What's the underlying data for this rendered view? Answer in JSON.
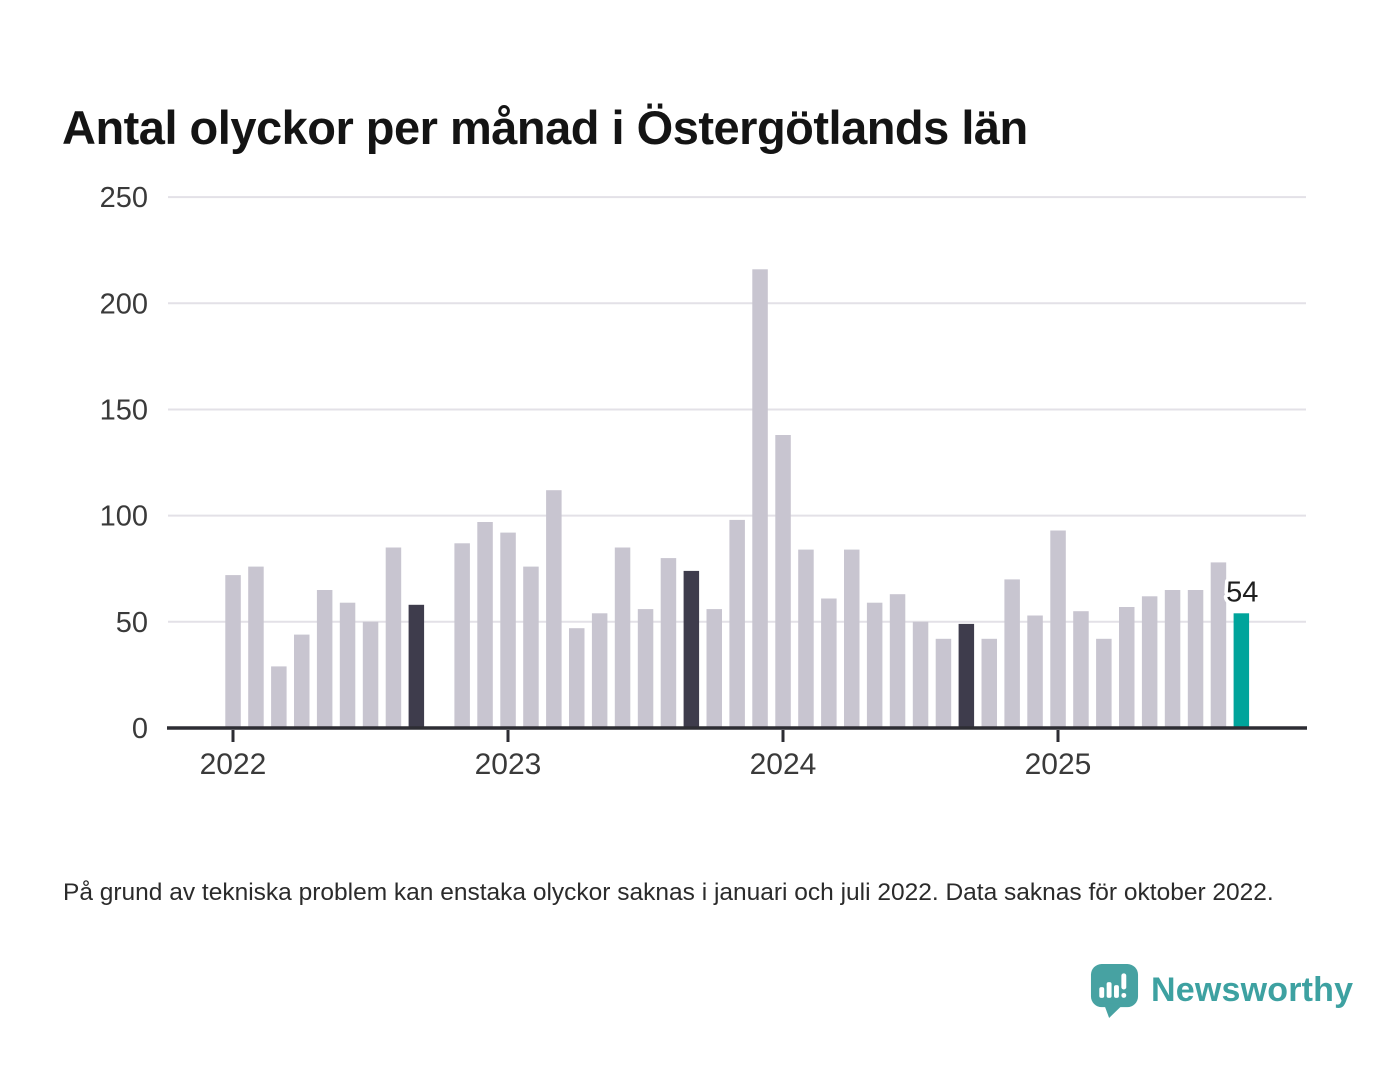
{
  "title": "Antal olyckor per månad i Östergötlands län",
  "footnote": "På grund av tekniska problem kan enstaka olyckor saknas i januari och juli 2022. Data saknas för oktober 2022.",
  "logo": {
    "text": "Newsworthy",
    "icon": "speech-bubble-bar-chart-exclamation"
  },
  "colors": {
    "bar_default": "#c8c5d0",
    "bar_dark": "#3e3c4c",
    "bar_accent": "#00a49b",
    "grid": "#e3e1e7",
    "axis": "#2d2d33",
    "text": "#3a3a3a",
    "annotation_text": "#1f1f1f",
    "logo_teal": "#3da1a1",
    "title_text": "#141414"
  },
  "chart_data": {
    "type": "bar",
    "title": "Antal olyckor per månad i Östergötlands län",
    "xlabel": "",
    "ylabel": "",
    "ylim": [
      0,
      250
    ],
    "y_ticks": [
      0,
      50,
      100,
      150,
      200,
      250
    ],
    "grid": "horizontal",
    "legend": "none",
    "x_tick_years": [
      "2022",
      "2023",
      "2024",
      "2025"
    ],
    "categories": [
      "2022-01",
      "2022-02",
      "2022-03",
      "2022-04",
      "2022-05",
      "2022-06",
      "2022-07",
      "2022-08",
      "2022-09",
      "2022-10",
      "2022-11",
      "2022-12",
      "2023-01",
      "2023-02",
      "2023-03",
      "2023-04",
      "2023-05",
      "2023-06",
      "2023-07",
      "2023-08",
      "2023-09",
      "2023-10",
      "2023-11",
      "2023-12",
      "2024-01",
      "2024-02",
      "2024-03",
      "2024-04",
      "2024-05",
      "2024-06",
      "2024-07",
      "2024-08",
      "2024-09",
      "2024-10",
      "2024-11",
      "2024-12",
      "2025-01",
      "2025-02",
      "2025-03",
      "2025-04",
      "2025-05",
      "2025-06",
      "2025-07",
      "2025-08",
      "2025-09"
    ],
    "values": [
      72,
      76,
      29,
      44,
      65,
      59,
      50,
      85,
      58,
      null,
      87,
      97,
      92,
      76,
      112,
      47,
      54,
      85,
      56,
      80,
      74,
      56,
      98,
      216,
      138,
      84,
      61,
      84,
      59,
      63,
      50,
      42,
      49,
      42,
      70,
      53,
      93,
      55,
      42,
      57,
      62,
      65,
      65,
      78,
      54
    ],
    "highlight": {
      "dark_months": [
        "2022-09",
        "2023-09",
        "2024-09"
      ],
      "accent_month": "2025-09"
    },
    "annotation": {
      "text": "54",
      "month": "2025-09"
    },
    "missing_months": [
      "2022-10"
    ]
  }
}
